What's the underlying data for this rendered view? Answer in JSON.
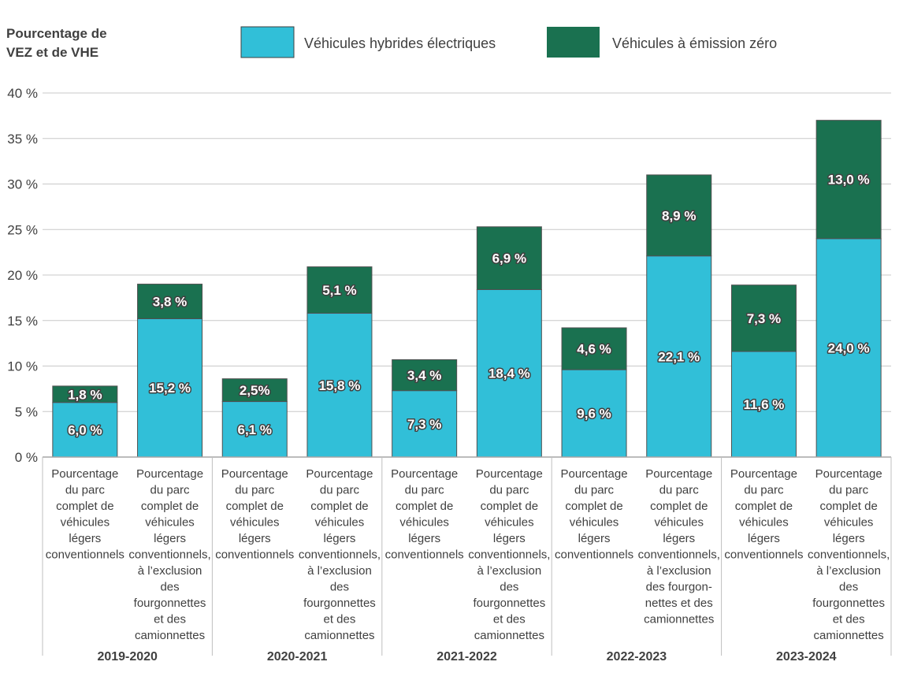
{
  "chart_data": {
    "type": "bar",
    "stacked": true,
    "ylabel": "Pourcentage de\nVEZ et de VHE",
    "ylim": [
      0,
      40
    ],
    "yticks": [
      0,
      5,
      10,
      15,
      20,
      25,
      30,
      35,
      40
    ],
    "ytick_labels": [
      "0 %",
      "5 %",
      "10 %",
      "15 %",
      "20 %",
      "25 %",
      "30 %",
      "35 %",
      "40 %"
    ],
    "grid": true,
    "legend_position": "top",
    "groups": [
      "2019-2020",
      "2020-2021",
      "2021-2022",
      "2022-2023",
      "2023-2024"
    ],
    "categories": [
      "Pourcentage\ndu parc\ncomplet de\nvéhicules\nlégers\nconventionnels",
      "Pourcentage\ndu parc\ncomplet de\nvéhicules\nlégers\nconventionnels,\nà l’exclusion\ndes\nfourgonnettes\net des\ncamionnettes",
      "Pourcentage\ndu parc\ncomplet de\nvéhicules\nlégers\nconventionnels",
      "Pourcentage\ndu parc\ncomplet de\nvéhicules\nlégers\nconventionnels,\nà l’exclusion\ndes\nfourgonnettes\net des\ncamionnettes",
      "Pourcentage\ndu parc\ncomplet de\nvéhicules\nlégers\nconventionnels",
      "Pourcentage\ndu parc\ncomplet de\nvéhicules\nlégers\nconventionnels,\nà l’exclusion\ndes\nfourgonnettes\net des\ncamionnettes",
      "Pourcentage\ndu parc\ncomplet de\nvéhicules\nlégers\nconventionnels",
      "Pourcentage\ndu parc\ncomplet de\nvéhicules\nlégers\nconventionnels,\nà l’exclusion\ndes fourgon-\nnettes et des\ncamionnettes",
      "Pourcentage\ndu parc\ncomplet de\nvéhicules\nlégers\nconventionnels",
      "Pourcentage\ndu parc\ncomplet de\nvéhicules\nlégers\nconventionnels,\nà l’exclusion\ndes\nfourgonnettes\net des\ncamionnettes"
    ],
    "series": [
      {
        "name": "Véhicules hybrides électriques",
        "color": "#31bfd8",
        "values": [
          6.0,
          15.2,
          6.1,
          15.8,
          7.3,
          18.4,
          9.6,
          22.1,
          11.6,
          24.0
        ],
        "labels": [
          "6,0 %",
          "15,2 %",
          "6,1  %",
          "15,8 %",
          "7,3 %",
          "18,4 %",
          "9,6 %",
          "22,1 %",
          "11,6 %",
          "24,0 %"
        ]
      },
      {
        "name": "Véhicules à émission zéro",
        "color": "#1a7150",
        "values": [
          1.8,
          3.8,
          2.5,
          5.1,
          3.4,
          6.9,
          4.6,
          8.9,
          7.3,
          13.0
        ],
        "labels": [
          "1,8 %",
          "3,8 %",
          "2,5%",
          "5,1 %",
          "3,4 %",
          "6,9 %",
          "4,6 %",
          "8,9 %",
          "7,3 %",
          "13,0 %"
        ]
      }
    ]
  }
}
